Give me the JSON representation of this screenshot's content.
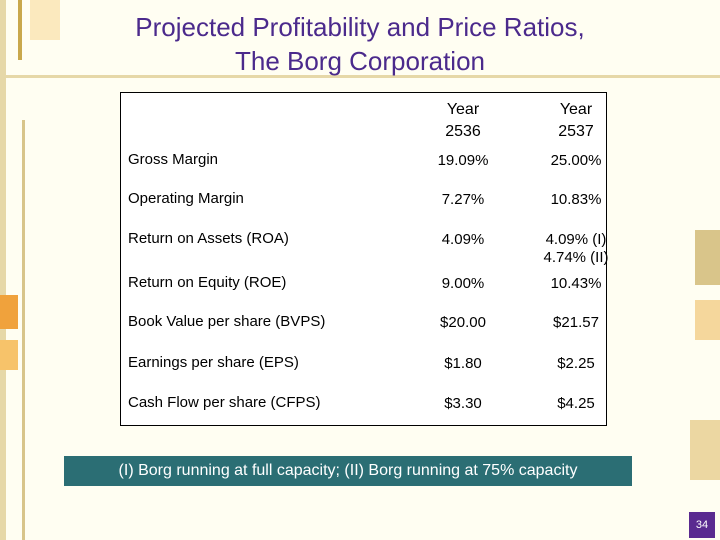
{
  "title": {
    "line1": "Projected Profitability and Price Ratios,",
    "line2": "The Borg Corporation"
  },
  "table": {
    "columns": [
      {
        "line1": "Year",
        "line2": "2536"
      },
      {
        "line1": "Year",
        "line2": "2537"
      }
    ],
    "rows": [
      {
        "label": "Gross Margin",
        "y2536": "19.09%",
        "y2537": "25.00%"
      },
      {
        "label": "Operating Margin",
        "y2536": "7.27%",
        "y2537": "10.83%"
      },
      {
        "label": "Return on Assets (ROA)",
        "y2536": "4.09%",
        "y2537": "4.09% (I)",
        "y2537b": "4.74% (II)"
      },
      {
        "label": "Return on Equity (ROE)",
        "y2536": "9.00%",
        "y2537": "10.43%"
      },
      {
        "label": "Book Value per share (BVPS)",
        "y2536": "$20.00",
        "y2537": "$21.57"
      },
      {
        "label": "Earnings per share (EPS)",
        "y2536": "$1.80",
        "y2537": "$2.25"
      },
      {
        "label": "Cash Flow per share (CFPS)",
        "y2536": "$3.30",
        "y2537": "$4.25"
      }
    ]
  },
  "footnote": "(I) Borg running at full capacity; (II) Borg running at 75% capacity",
  "page_number": "34"
}
